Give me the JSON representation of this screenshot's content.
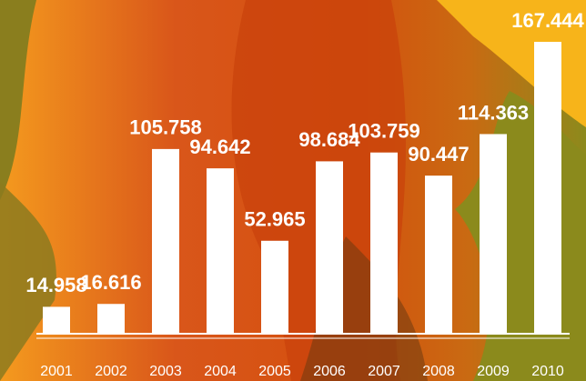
{
  "chart_data": {
    "type": "bar",
    "categories": [
      "2001",
      "2002",
      "2003",
      "2004",
      "2005",
      "2006",
      "2007",
      "2008",
      "2009",
      "2010"
    ],
    "values": [
      14.958,
      16.616,
      105.758,
      94.642,
      52.965,
      98.684,
      103.759,
      90.447,
      114.363,
      167.444
    ],
    "color": "#ffffff"
  }
}
